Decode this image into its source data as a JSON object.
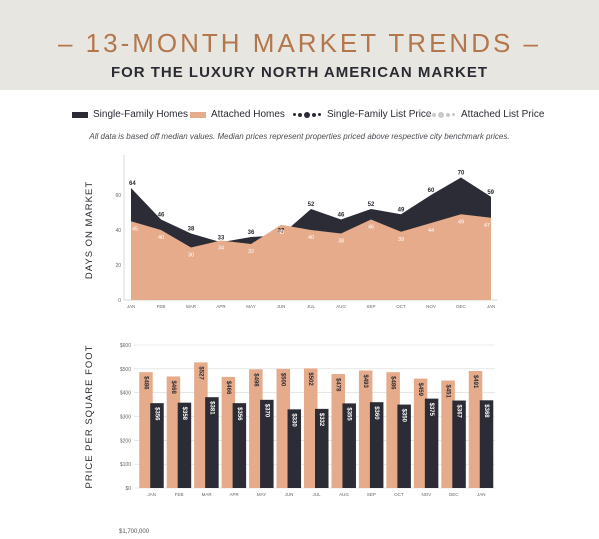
{
  "header": {
    "title": "– 13-MONTH MARKET TRENDS –",
    "subtitle": "FOR THE LUXURY NORTH AMERICAN MARKET"
  },
  "legend": {
    "items": [
      "Single-Family Homes",
      "Attached Homes",
      "Single-Family List Price",
      "Attached List Price"
    ]
  },
  "note": "All data is based off median values. Median prices represent properties priced above respective city benchmark prices.",
  "colors": {
    "single_family": "#2b2c35",
    "attached": "#e5ab8b",
    "attached_list": "#c9c9cc"
  },
  "bottom_tick": "$1,700,000",
  "chart_data": [
    {
      "type": "area",
      "ylabel": "DAYS ON MARKET",
      "categories": [
        "JAN",
        "FEB",
        "MAR",
        "APR",
        "MAY",
        "JUN",
        "JUL",
        "AUG",
        "SEP",
        "OCT",
        "NOV",
        "DEC",
        "JAN"
      ],
      "ylim": [
        0,
        80
      ],
      "yticks": [
        {
          "value": 0,
          "label": "0"
        },
        {
          "value": 20,
          "label": "20"
        },
        {
          "value": 40,
          "label": "40"
        },
        {
          "value": 60,
          "label": "60"
        }
      ],
      "series": [
        {
          "name": "Single-Family Homes",
          "values": [
            64,
            46,
            38,
            33,
            36,
            37,
            52,
            46,
            52,
            49,
            60,
            70,
            59
          ]
        },
        {
          "name": "Attached Homes",
          "values": [
            45,
            40,
            30,
            34,
            32,
            43,
            40,
            38,
            46,
            39,
            44,
            49,
            47
          ]
        }
      ]
    },
    {
      "type": "bar",
      "ylabel": "PRICE PER SQUARE FOOT",
      "categories": [
        "JAN",
        "FEB",
        "MAR",
        "APR",
        "MAY",
        "JUN",
        "JUL",
        "AUG",
        "SEP",
        "OCT",
        "NOV",
        "DEC",
        "JAN"
      ],
      "ylim": [
        0,
        600
      ],
      "yticks": [
        {
          "value": 0,
          "label": "$0"
        },
        {
          "value": 100,
          "label": "$100"
        },
        {
          "value": 200,
          "label": "$200"
        },
        {
          "value": 300,
          "label": "$300"
        },
        {
          "value": 400,
          "label": "$400"
        },
        {
          "value": 500,
          "label": "$500"
        },
        {
          "value": 600,
          "label": "$600"
        }
      ],
      "series": [
        {
          "name": "Attached Homes",
          "values": [
            486,
            468,
            527,
            466,
            498,
            500,
            502,
            478,
            493,
            486,
            459,
            451,
            491
          ],
          "labels": [
            "$486",
            "$468",
            "$527",
            "$466",
            "$498",
            "$500",
            "$502",
            "$478",
            "$493",
            "$486",
            "$459",
            "$451",
            "$491"
          ]
        },
        {
          "name": "Single-Family Homes",
          "values": [
            356,
            358,
            381,
            356,
            370,
            330,
            332,
            355,
            360,
            350,
            375,
            367,
            368
          ],
          "labels": [
            "$356",
            "$358",
            "$381",
            "$356",
            "$370",
            "$330",
            "$332",
            "$355",
            "$360",
            "$350",
            "$375",
            "$367",
            "$368"
          ]
        }
      ]
    }
  ]
}
